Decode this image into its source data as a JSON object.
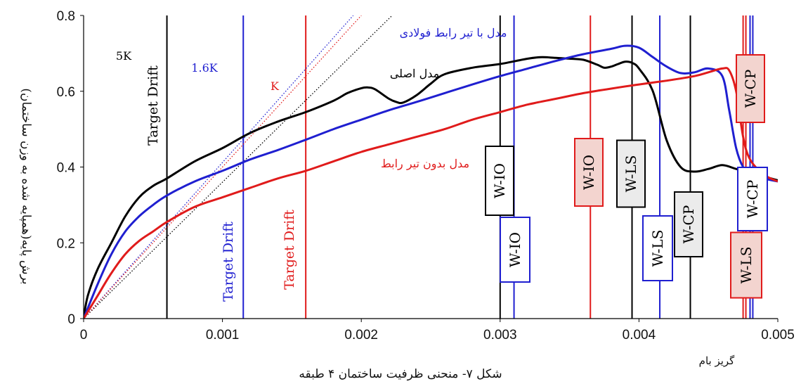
{
  "figure": {
    "caption": "شکل ۷- منحنی ظرفیت ساختمان ۴ طبقه"
  },
  "chart_data": {
    "type": "line",
    "xlabel": "گریز بام",
    "ylabel": "برش پایه(همپایه شده به وزن ساختمان)",
    "xlim": [
      0,
      0.005
    ],
    "ylim": [
      0,
      0.8
    ],
    "x_ticks": [
      0,
      0.001,
      0.002,
      0.003,
      0.004,
      0.005
    ],
    "x_tick_labels": [
      "0",
      "0.001",
      "0.002",
      "0.003",
      "0.004",
      "0.005"
    ],
    "y_ticks": [
      0,
      0.2,
      0.4,
      0.6,
      0.8
    ],
    "y_tick_labels": [
      "0",
      "0.2",
      "0.4",
      "0.6",
      "0.8"
    ],
    "grid": false,
    "series": [
      {
        "name": "مدل اصلی",
        "color": "#000000",
        "points": [
          [
            0,
            0
          ],
          [
            3e-05,
            0.06
          ],
          [
            0.0001,
            0.13
          ],
          [
            0.0002,
            0.2
          ],
          [
            0.0003,
            0.27
          ],
          [
            0.0004,
            0.32
          ],
          [
            0.0005,
            0.35
          ],
          [
            0.0006,
            0.37
          ],
          [
            0.0008,
            0.415
          ],
          [
            0.001,
            0.45
          ],
          [
            0.0012,
            0.49
          ],
          [
            0.0014,
            0.52
          ],
          [
            0.0016,
            0.545
          ],
          [
            0.0018,
            0.575
          ],
          [
            0.0019,
            0.595
          ],
          [
            0.002,
            0.608
          ],
          [
            0.00205,
            0.61
          ],
          [
            0.0021,
            0.605
          ],
          [
            0.0022,
            0.58
          ],
          [
            0.00225,
            0.572
          ],
          [
            0.0023,
            0.57
          ],
          [
            0.0024,
            0.59
          ],
          [
            0.0025,
            0.62
          ],
          [
            0.0026,
            0.645
          ],
          [
            0.0028,
            0.662
          ],
          [
            0.003,
            0.672
          ],
          [
            0.0032,
            0.686
          ],
          [
            0.0033,
            0.69
          ],
          [
            0.0034,
            0.688
          ],
          [
            0.0035,
            0.686
          ],
          [
            0.0036,
            0.683
          ],
          [
            0.0037,
            0.67
          ],
          [
            0.00375,
            0.662
          ],
          [
            0.0038,
            0.665
          ],
          [
            0.00385,
            0.672
          ],
          [
            0.0039,
            0.678
          ],
          [
            0.00395,
            0.675
          ],
          [
            0.004,
            0.66
          ],
          [
            0.0041,
            0.6
          ],
          [
            0.0042,
            0.47
          ],
          [
            0.0043,
            0.4
          ],
          [
            0.0044,
            0.388
          ],
          [
            0.0045,
            0.395
          ],
          [
            0.0046,
            0.405
          ],
          [
            0.0047,
            0.395
          ],
          [
            0.0048,
            0.385
          ],
          [
            0.0049,
            0.375
          ],
          [
            0.005,
            0.365
          ]
        ]
      },
      {
        "name": "مدل با تیر رابط فولادی",
        "color": "#1f1fd0",
        "points": [
          [
            0,
            0
          ],
          [
            0.0001,
            0.09
          ],
          [
            0.0002,
            0.17
          ],
          [
            0.0003,
            0.23
          ],
          [
            0.0004,
            0.27
          ],
          [
            0.0005,
            0.3
          ],
          [
            0.0006,
            0.325
          ],
          [
            0.0008,
            0.362
          ],
          [
            0.001,
            0.39
          ],
          [
            0.0012,
            0.42
          ],
          [
            0.0014,
            0.445
          ],
          [
            0.0016,
            0.472
          ],
          [
            0.0018,
            0.5
          ],
          [
            0.002,
            0.525
          ],
          [
            0.0022,
            0.55
          ],
          [
            0.0024,
            0.572
          ],
          [
            0.0026,
            0.595
          ],
          [
            0.0028,
            0.618
          ],
          [
            0.003,
            0.64
          ],
          [
            0.0032,
            0.66
          ],
          [
            0.0034,
            0.68
          ],
          [
            0.0036,
            0.698
          ],
          [
            0.0038,
            0.712
          ],
          [
            0.0039,
            0.72
          ],
          [
            0.004,
            0.715
          ],
          [
            0.0041,
            0.69
          ],
          [
            0.0042,
            0.665
          ],
          [
            0.0043,
            0.648
          ],
          [
            0.0044,
            0.65
          ],
          [
            0.0045,
            0.66
          ],
          [
            0.0046,
            0.64
          ],
          [
            0.00465,
            0.55
          ],
          [
            0.0047,
            0.45
          ],
          [
            0.00475,
            0.4
          ],
          [
            0.0048,
            0.385
          ],
          [
            0.0049,
            0.37
          ],
          [
            0.005,
            0.362
          ]
        ]
      },
      {
        "name": "مدل بدون تیر رابط",
        "color": "#e01b1b",
        "points": [
          [
            0,
            0
          ],
          [
            0.0001,
            0.06
          ],
          [
            0.0002,
            0.12
          ],
          [
            0.0003,
            0.17
          ],
          [
            0.0004,
            0.205
          ],
          [
            0.0005,
            0.23
          ],
          [
            0.0006,
            0.255
          ],
          [
            0.0008,
            0.295
          ],
          [
            0.001,
            0.32
          ],
          [
            0.0012,
            0.345
          ],
          [
            0.0014,
            0.37
          ],
          [
            0.0016,
            0.39
          ],
          [
            0.0018,
            0.415
          ],
          [
            0.002,
            0.44
          ],
          [
            0.0022,
            0.46
          ],
          [
            0.0024,
            0.48
          ],
          [
            0.0026,
            0.5
          ],
          [
            0.0028,
            0.525
          ],
          [
            0.003,
            0.545
          ],
          [
            0.0032,
            0.565
          ],
          [
            0.0034,
            0.58
          ],
          [
            0.0036,
            0.595
          ],
          [
            0.0038,
            0.607
          ],
          [
            0.004,
            0.618
          ],
          [
            0.0042,
            0.628
          ],
          [
            0.0044,
            0.64
          ],
          [
            0.0045,
            0.65
          ],
          [
            0.0046,
            0.66
          ],
          [
            0.00465,
            0.655
          ],
          [
            0.0047,
            0.6
          ],
          [
            0.00475,
            0.48
          ],
          [
            0.0048,
            0.42
          ],
          [
            0.0049,
            0.38
          ],
          [
            0.005,
            0.362
          ]
        ]
      }
    ],
    "stiffness_lines": [
      {
        "label": "5K",
        "color": "#000000",
        "slope": 360
      },
      {
        "label": "1.6K",
        "color": "#1f1fd0",
        "slope": 412
      },
      {
        "label": "K",
        "color": "#e01b1b",
        "slope": 400
      }
    ],
    "target_drift_lines": [
      {
        "label": "Target Drift",
        "x": 0.0006,
        "color": "#000000"
      },
      {
        "label": "Target Drift",
        "x": 0.00115,
        "color": "#1f1fd0"
      },
      {
        "label": "Target Drift",
        "x": 0.0016,
        "color": "#e01b1b"
      }
    ],
    "performance_lines": [
      {
        "label": "W-IO",
        "x": 0.003,
        "color": "#000000",
        "fill": "#ffffff"
      },
      {
        "label": "W-IO",
        "x": 0.0031,
        "color": "#1f1fd0",
        "fill": "#ffffff"
      },
      {
        "label": "W-IO",
        "x": 0.00365,
        "color": "#e01b1b",
        "fill": "#f3d4cf"
      },
      {
        "label": "W-LS",
        "x": 0.00395,
        "color": "#000000",
        "fill": "#ebebeb"
      },
      {
        "label": "W-LS",
        "x": 0.00415,
        "color": "#1f1fd0",
        "fill": "#ffffff"
      },
      {
        "label": "W-CP",
        "x": 0.00437,
        "color": "#000000",
        "fill": "#ebebeb"
      },
      {
        "label": "W-CP",
        "x": 0.00477,
        "color": "#e01b1b",
        "fill": "#f3d4cf"
      },
      {
        "label": "W-CP",
        "x": 0.00482,
        "color": "#1f1fd0",
        "fill": "#ffffff"
      },
      {
        "label": "W-LS",
        "x": 0.00475,
        "color": "#e01b1b",
        "fill": "#f3d4cf"
      },
      {
        "label": "",
        "x": 0.0048,
        "color": "#1f1fd0",
        "fill": "none"
      }
    ]
  }
}
